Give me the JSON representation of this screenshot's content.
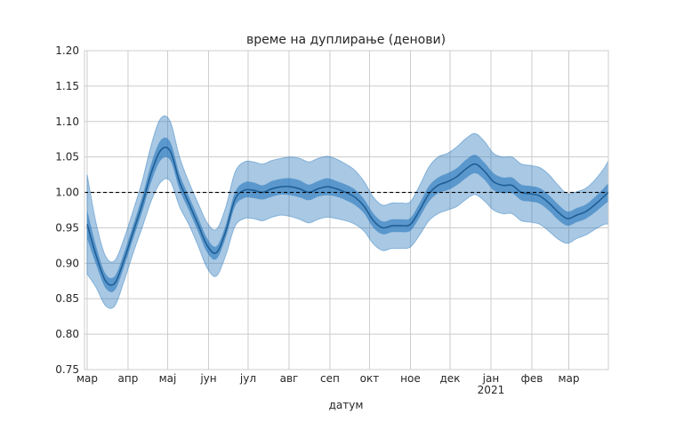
{
  "chart_data": {
    "type": "line",
    "title": "време на дуплирање (денови)",
    "xlabel": "датум",
    "ylabel": "",
    "ylim": [
      0.75,
      1.2
    ],
    "yticks": [
      0.75,
      0.8,
      0.85,
      0.9,
      0.95,
      1.0,
      1.05,
      1.1,
      1.15,
      1.2
    ],
    "ytick_labels": [
      "0.75",
      "0.80",
      "0.85",
      "0.90",
      "0.95",
      "1.00",
      "1.05",
      "1.10",
      "1.15",
      "1.20"
    ],
    "xlim": [
      "2020-02-28",
      "2021-03-31"
    ],
    "xticks": [
      {
        "date": "2020-03-01",
        "label": "мар",
        "sublabel": ""
      },
      {
        "date": "2020-04-01",
        "label": "апр",
        "sublabel": ""
      },
      {
        "date": "2020-05-01",
        "label": "мај",
        "sublabel": ""
      },
      {
        "date": "2020-06-01",
        "label": "јун",
        "sublabel": ""
      },
      {
        "date": "2020-07-01",
        "label": "јул",
        "sublabel": ""
      },
      {
        "date": "2020-08-01",
        "label": "авг",
        "sublabel": ""
      },
      {
        "date": "2020-09-01",
        "label": "сеп",
        "sublabel": ""
      },
      {
        "date": "2020-10-01",
        "label": "окт",
        "sublabel": ""
      },
      {
        "date": "2020-11-01",
        "label": "ное",
        "sublabel": ""
      },
      {
        "date": "2020-12-01",
        "label": "дек",
        "sublabel": ""
      },
      {
        "date": "2021-01-01",
        "label": "јан",
        "sublabel": "2021"
      },
      {
        "date": "2021-02-01",
        "label": "фев",
        "sublabel": ""
      },
      {
        "date": "2021-03-01",
        "label": "мар",
        "sublabel": ""
      }
    ],
    "reference_line": {
      "y": 1.0,
      "style": "dashed",
      "color": "#000000"
    },
    "grid": true,
    "colors": {
      "line": "#2f7dbf",
      "band_inner": "#2f7dbf",
      "band_outer": "#2f7dbf",
      "grid": "#cccccc"
    },
    "series": [
      {
        "x": [
          "2020-03-01",
          "2020-03-08",
          "2020-03-15",
          "2020-03-22",
          "2020-03-29",
          "2020-04-05",
          "2020-04-12",
          "2020-04-19",
          "2020-04-26",
          "2020-05-03",
          "2020-05-10",
          "2020-05-17",
          "2020-05-24",
          "2020-05-31",
          "2020-06-07",
          "2020-06-14",
          "2020-06-21",
          "2020-06-28",
          "2020-07-05",
          "2020-07-12",
          "2020-07-19",
          "2020-07-26",
          "2020-08-02",
          "2020-08-09",
          "2020-08-16",
          "2020-08-23",
          "2020-08-30",
          "2020-09-06",
          "2020-09-13",
          "2020-09-20",
          "2020-09-27",
          "2020-10-04",
          "2020-10-11",
          "2020-10-18",
          "2020-10-25",
          "2020-11-01",
          "2020-11-08",
          "2020-11-15",
          "2020-11-22",
          "2020-11-29",
          "2020-12-06",
          "2020-12-13",
          "2020-12-20",
          "2020-12-27",
          "2021-01-03",
          "2021-01-10",
          "2021-01-17",
          "2021-01-24",
          "2021-01-31",
          "2021-02-07",
          "2021-02-14",
          "2021-02-21",
          "2021-02-28",
          "2021-03-07",
          "2021-03-14",
          "2021-03-21",
          "2021-03-28",
          "2021-03-31"
        ],
        "values": [
          0.955,
          0.91,
          0.875,
          0.872,
          0.905,
          0.945,
          0.985,
          1.03,
          1.06,
          1.058,
          1.015,
          0.985,
          0.955,
          0.925,
          0.915,
          0.945,
          0.99,
          1.003,
          1.003,
          1.0,
          1.005,
          1.008,
          1.008,
          1.005,
          1.0,
          1.005,
          1.008,
          1.005,
          1.0,
          0.993,
          0.98,
          0.96,
          0.95,
          0.953,
          0.953,
          0.955,
          0.975,
          0.998,
          1.01,
          1.015,
          1.022,
          1.033,
          1.04,
          1.03,
          1.015,
          1.01,
          1.01,
          1.0,
          0.998,
          0.995,
          0.985,
          0.972,
          0.963,
          0.968,
          0.973,
          0.983,
          0.995,
          1.0
        ],
        "inner_half_width": [
          0.02,
          0.013,
          0.01,
          0.01,
          0.01,
          0.01,
          0.011,
          0.013,
          0.014,
          0.013,
          0.011,
          0.01,
          0.01,
          0.01,
          0.009,
          0.009,
          0.01,
          0.011,
          0.011,
          0.01,
          0.011,
          0.011,
          0.012,
          0.012,
          0.011,
          0.011,
          0.012,
          0.011,
          0.011,
          0.011,
          0.01,
          0.01,
          0.009,
          0.009,
          0.009,
          0.009,
          0.01,
          0.011,
          0.011,
          0.012,
          0.012,
          0.013,
          0.013,
          0.012,
          0.012,
          0.011,
          0.011,
          0.011,
          0.011,
          0.011,
          0.011,
          0.011,
          0.01,
          0.01,
          0.01,
          0.011,
          0.012,
          0.013
        ],
        "outer_half_width": [
          0.07,
          0.045,
          0.035,
          0.032,
          0.03,
          0.03,
          0.033,
          0.04,
          0.045,
          0.042,
          0.035,
          0.03,
          0.03,
          0.032,
          0.033,
          0.034,
          0.038,
          0.04,
          0.04,
          0.04,
          0.04,
          0.04,
          0.042,
          0.043,
          0.043,
          0.043,
          0.043,
          0.042,
          0.04,
          0.038,
          0.035,
          0.033,
          0.032,
          0.032,
          0.032,
          0.032,
          0.035,
          0.038,
          0.04,
          0.04,
          0.042,
          0.043,
          0.043,
          0.042,
          0.04,
          0.04,
          0.04,
          0.04,
          0.04,
          0.04,
          0.04,
          0.038,
          0.035,
          0.033,
          0.033,
          0.035,
          0.04,
          0.045
        ]
      }
    ]
  }
}
